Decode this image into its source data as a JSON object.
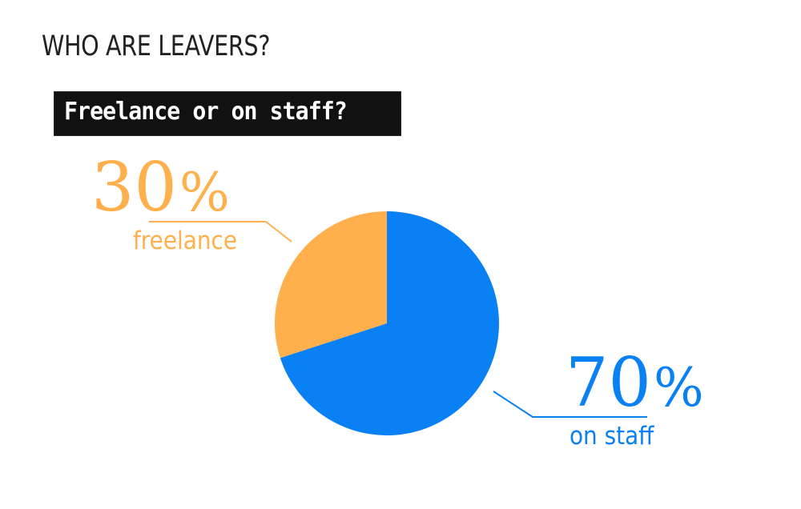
{
  "header": {
    "title": "WHO ARE LEAVERS?",
    "subtitle": "Freelance or on staff?"
  },
  "chart_data": {
    "type": "pie",
    "title": "WHO ARE LEAVERS?",
    "subtitle": "Freelance or on staff?",
    "unit": "%",
    "slices": [
      {
        "label": "freelance",
        "value": 30,
        "display": "30",
        "color": "#FFB04D"
      },
      {
        "label": "on staff",
        "value": 70,
        "display": "70",
        "color": "#0A80F5"
      }
    ]
  }
}
